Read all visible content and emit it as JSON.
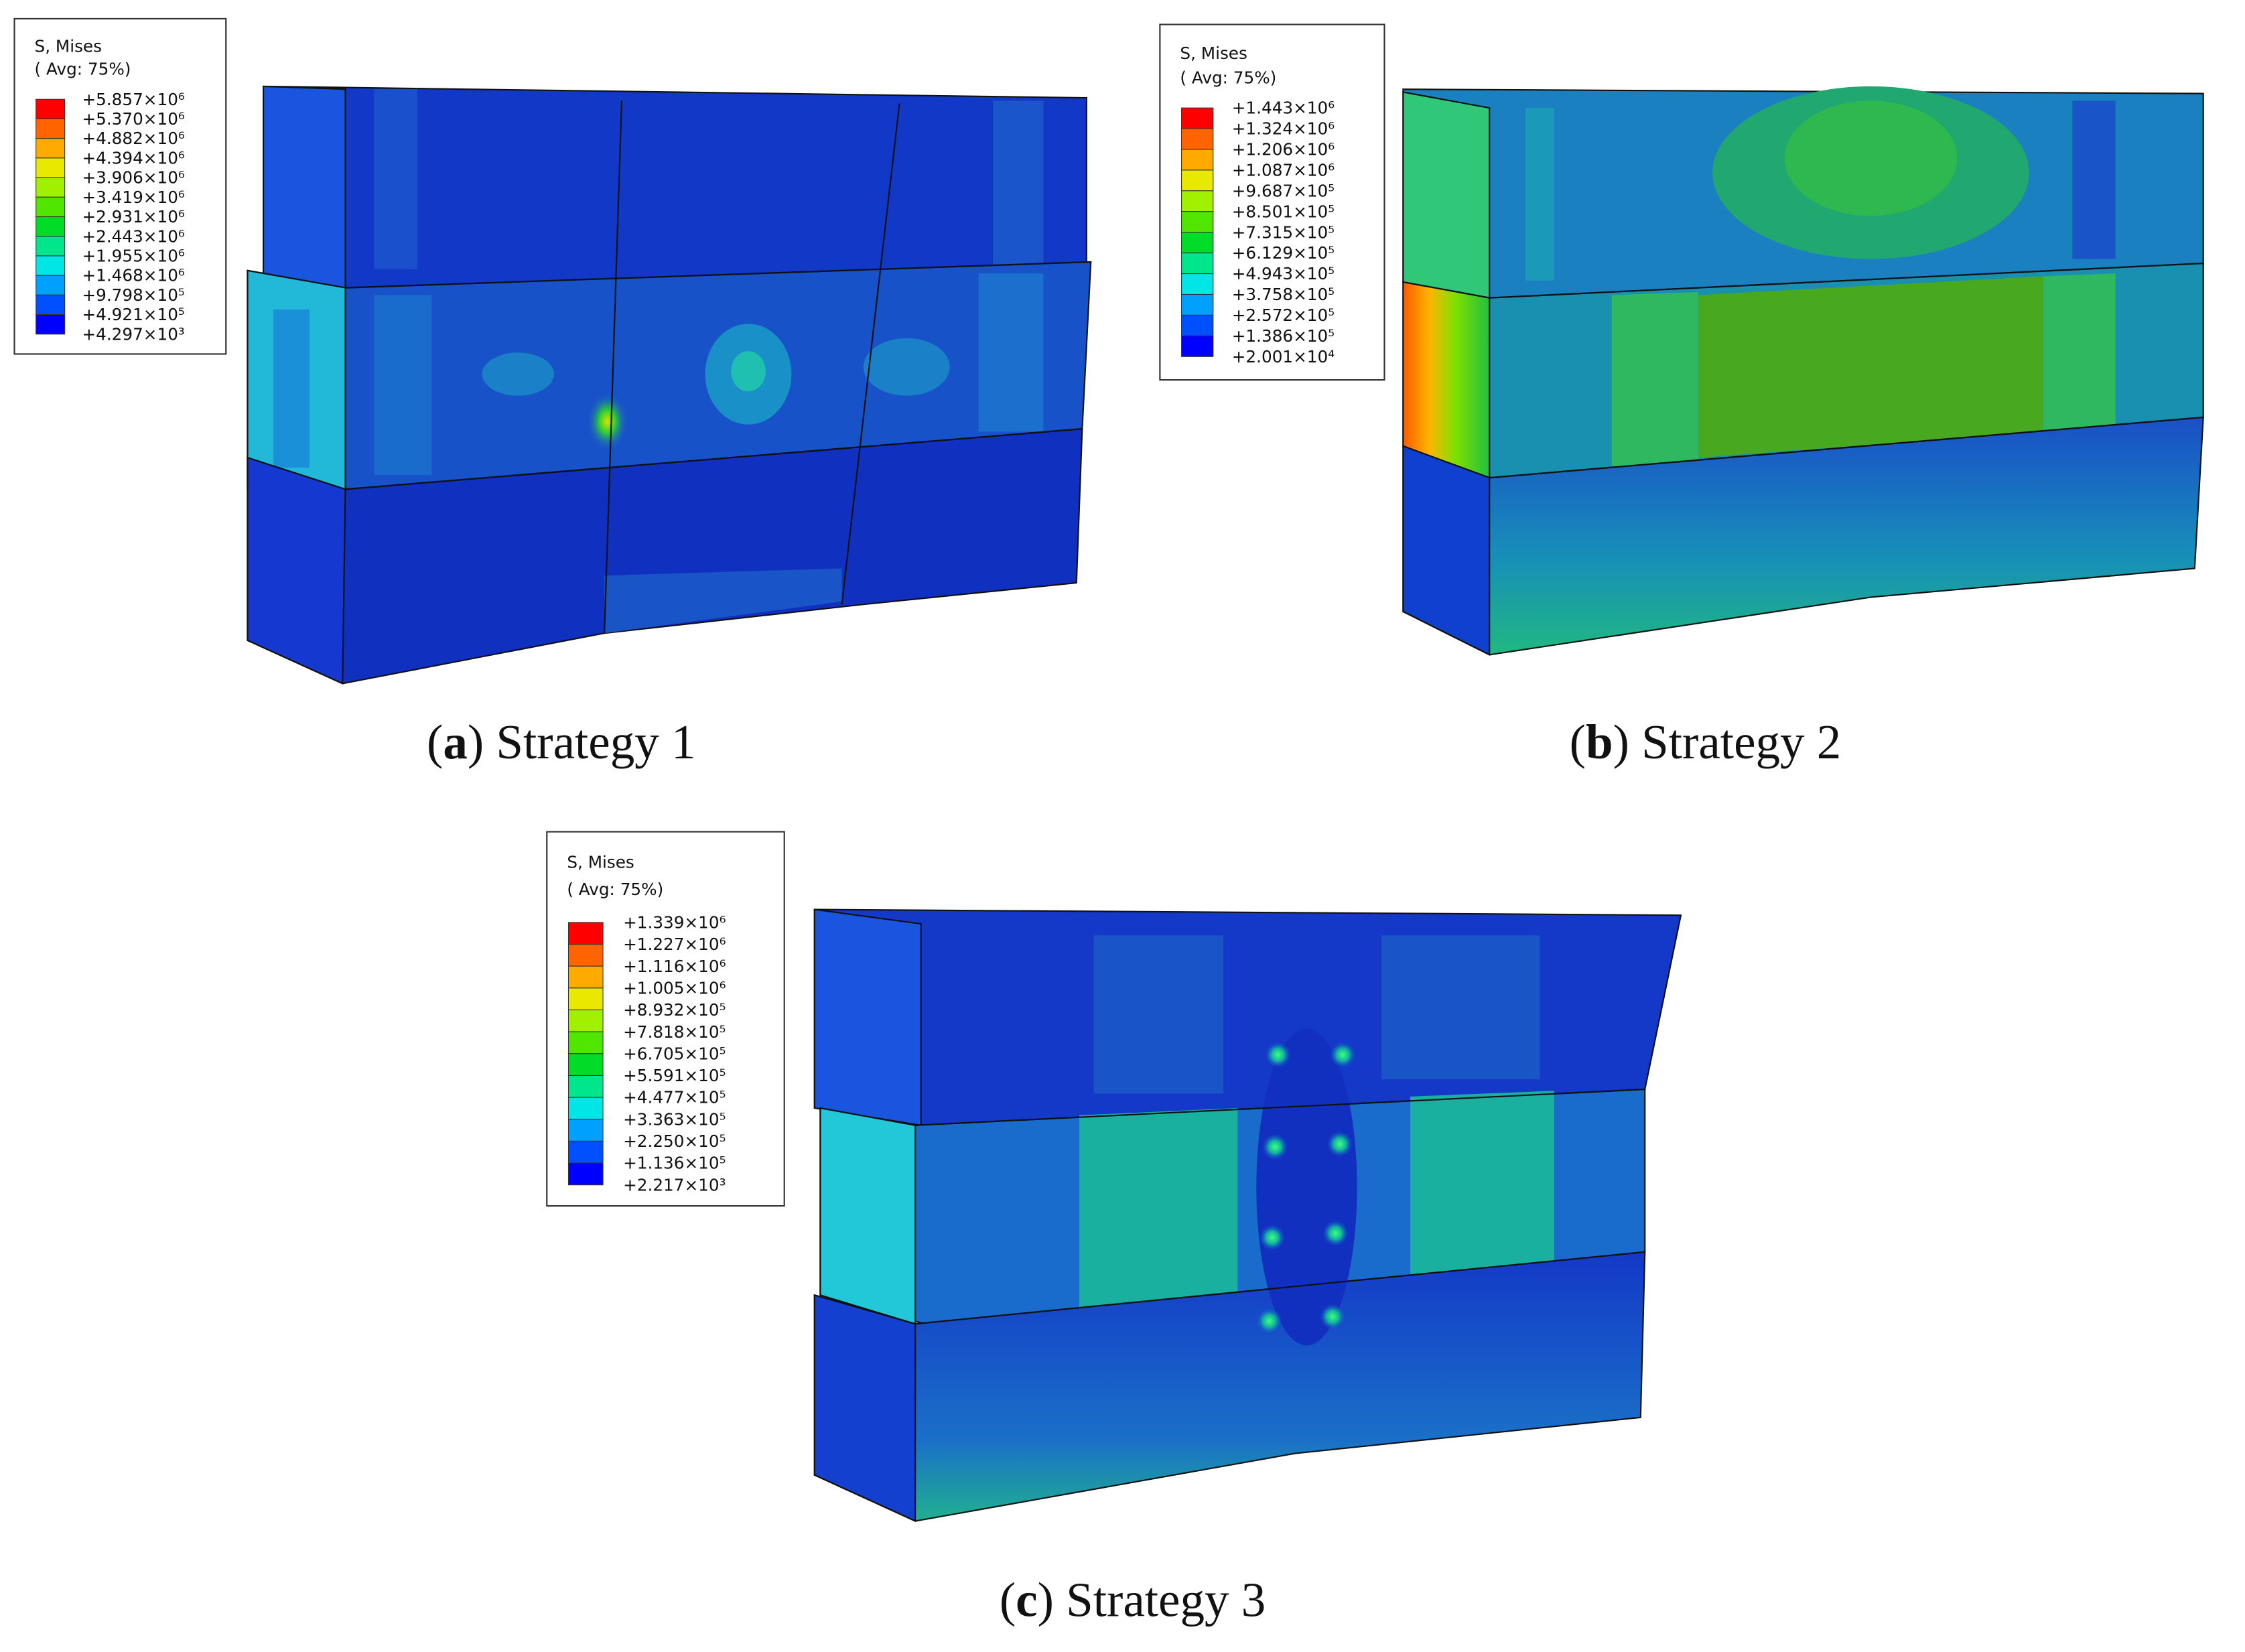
{
  "panels": [
    {
      "legend": {
        "title": "S, Mises",
        "subtitle": "( Avg: 75%)",
        "values": [
          "+5.857×10⁶",
          "+5.370×10⁶",
          "+4.882×10⁶",
          "+4.394×10⁶",
          "+3.906×10⁶",
          "+3.419×10⁶",
          "+2.931×10⁶",
          "+2.443×10⁶",
          "+1.955×10⁶",
          "+1.468×10⁶",
          "+9.798×10⁵",
          "+4.921×10⁵",
          "+4.297×10³"
        ]
      },
      "caption": {
        "open": "(",
        "label": "a",
        "close": ") Strategy 1"
      }
    },
    {
      "legend": {
        "title": "S, Mises",
        "subtitle": "( Avg: 75%)",
        "values": [
          "+1.443×10⁶",
          "+1.324×10⁶",
          "+1.206×10⁶",
          "+1.087×10⁶",
          "+9.687×10⁵",
          "+8.501×10⁵",
          "+7.315×10⁵",
          "+6.129×10⁵",
          "+4.943×10⁵",
          "+3.758×10⁵",
          "+2.572×10⁵",
          "+1.386×10⁵",
          "+2.001×10⁴"
        ]
      },
      "caption": {
        "open": "(",
        "label": "b",
        "close": ") Strategy 2"
      }
    },
    {
      "legend": {
        "title": "S, Mises",
        "subtitle": "( Avg: 75%)",
        "values": [
          "+1.339×10⁶",
          "+1.227×10⁶",
          "+1.116×10⁶",
          "+1.005×10⁶",
          "+8.932×10⁵",
          "+7.818×10⁵",
          "+6.705×10⁵",
          "+5.591×10⁵",
          "+4.477×10⁵",
          "+3.363×10⁵",
          "+2.250×10⁵",
          "+1.136×10⁵",
          "+2.217×10³"
        ]
      },
      "caption": {
        "open": "(",
        "label": "c",
        "close": ") Strategy 3"
      }
    }
  ]
}
